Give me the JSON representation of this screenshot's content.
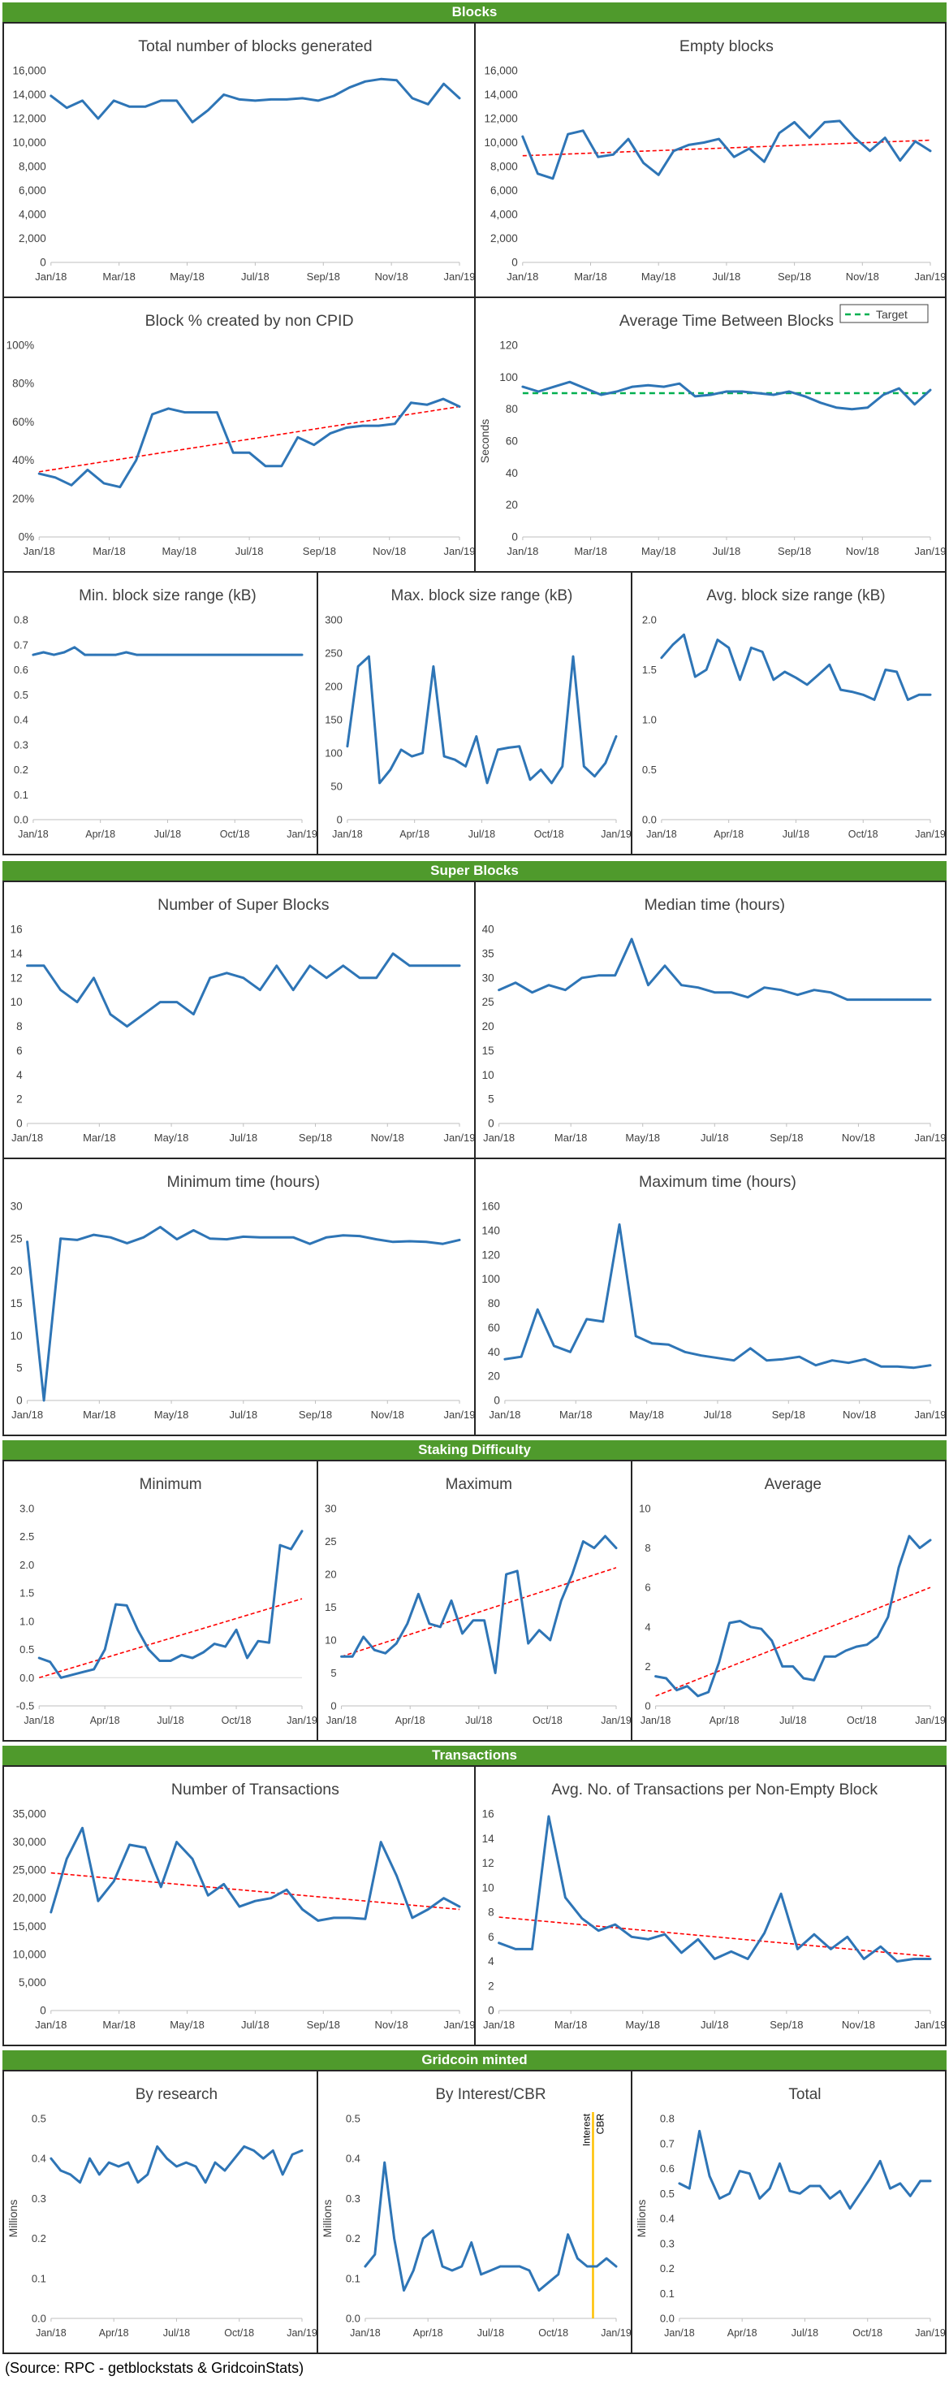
{
  "sections": [
    {
      "title": "Blocks"
    },
    {
      "title": "Super Blocks"
    },
    {
      "title": "Staking Difficulty"
    },
    {
      "title": "Transactions"
    },
    {
      "title": "Gridcoin minted"
    }
  ],
  "source": "(Source: RPC - getblockstats & GridcoinStats)",
  "colors": {
    "line": "#2e75b6",
    "trend": "#ff0000",
    "target": "#00b050",
    "cbr_marker": "#ffc000",
    "banner": "#4f9a2c"
  },
  "chart_data": [
    {
      "id": "total-blocks",
      "type": "line",
      "title": "Total number of blocks generated",
      "ylim": [
        0,
        16000
      ],
      "yticks": [
        0,
        2000,
        4000,
        6000,
        8000,
        10000,
        12000,
        14000,
        16000
      ],
      "yformat": "thousands",
      "xticks": [
        "Jan/18",
        "Mar/18",
        "May/18",
        "Jul/18",
        "Sep/18",
        "Nov/18",
        "Jan/19"
      ],
      "trend": null,
      "values": [
        13900,
        12900,
        13500,
        12000,
        13500,
        13000,
        13000,
        13500,
        13500,
        11700,
        12700,
        14000,
        13600,
        13500,
        13600,
        13600,
        13700,
        13500,
        13900,
        14600,
        15100,
        15300,
        15200,
        13700,
        13200,
        14900,
        13700
      ]
    },
    {
      "id": "empty-blocks",
      "type": "line",
      "title": "Empty blocks",
      "ylim": [
        0,
        16000
      ],
      "yticks": [
        0,
        2000,
        4000,
        6000,
        8000,
        10000,
        12000,
        14000,
        16000
      ],
      "yformat": "thousands",
      "xticks": [
        "Jan/18",
        "Mar/18",
        "May/18",
        "Jul/18",
        "Sep/18",
        "Nov/18",
        "Jan/19"
      ],
      "trend": [
        8900,
        10200
      ],
      "values": [
        10500,
        7400,
        7000,
        10700,
        11000,
        8800,
        9000,
        10300,
        8300,
        7300,
        9300,
        9800,
        10000,
        10300,
        8800,
        9500,
        8400,
        10800,
        11700,
        10400,
        11700,
        11800,
        10400,
        9300,
        10400,
        8500,
        10100,
        9300
      ]
    },
    {
      "id": "non-cpid",
      "type": "line",
      "title": "Block % created by non CPID",
      "ylim": [
        0,
        100
      ],
      "yticks": [
        0,
        20,
        40,
        60,
        80,
        100
      ],
      "yformat": "percent",
      "xticks": [
        "Jan/18",
        "Mar/18",
        "May/18",
        "Jul/18",
        "Sep/18",
        "Nov/18",
        "Jan/19"
      ],
      "trend": [
        34,
        68
      ],
      "values": [
        33,
        31,
        27,
        35,
        28,
        26,
        40,
        64,
        67,
        65,
        65,
        65,
        44,
        44,
        37,
        37,
        52,
        48,
        54,
        57,
        58,
        58,
        59,
        70,
        69,
        72,
        68
      ]
    },
    {
      "id": "avg-time",
      "type": "line",
      "title": "Average Time Between Blocks",
      "ylabel": "Seconds",
      "ylim": [
        0,
        120
      ],
      "yticks": [
        0,
        20,
        40,
        60,
        80,
        100,
        120
      ],
      "yformat": "plain",
      "xticks": [
        "Jan/18",
        "Mar/18",
        "May/18",
        "Jul/18",
        "Sep/18",
        "Nov/18",
        "Jan/19"
      ],
      "trend": null,
      "target": 90,
      "legend": "Target",
      "legend_position": "top-right",
      "values": [
        94,
        91,
        94,
        97,
        93,
        89,
        91,
        94,
        95,
        94,
        96,
        88,
        89,
        91,
        91,
        90,
        89,
        91,
        88,
        84,
        81,
        80,
        81,
        89,
        93,
        83,
        92
      ]
    },
    {
      "id": "min-block-size",
      "type": "line",
      "title": "Min. block size range (kB)",
      "ylim": [
        0,
        0.8
      ],
      "yticks": [
        0,
        0.1,
        0.2,
        0.3,
        0.4,
        0.5,
        0.6,
        0.7,
        0.8
      ],
      "yformat": "dec1",
      "xticks": [
        "Jan/18",
        "Apr/18",
        "Jul/18",
        "Oct/18",
        "Jan/19"
      ],
      "trend": null,
      "values": [
        0.66,
        0.67,
        0.66,
        0.67,
        0.69,
        0.66,
        0.66,
        0.66,
        0.66,
        0.67,
        0.66,
        0.66,
        0.66,
        0.66,
        0.66,
        0.66,
        0.66,
        0.66,
        0.66,
        0.66,
        0.66,
        0.66,
        0.66,
        0.66,
        0.66,
        0.66,
        0.66
      ]
    },
    {
      "id": "max-block-size",
      "type": "line",
      "title": "Max. block size range (kB)",
      "ylim": [
        0,
        300
      ],
      "yticks": [
        0,
        50,
        100,
        150,
        200,
        250,
        300
      ],
      "yformat": "plain",
      "xticks": [
        "Jan/18",
        "Apr/18",
        "Jul/18",
        "Oct/18",
        "Jan/19"
      ],
      "trend": null,
      "values": [
        110,
        230,
        245,
        55,
        75,
        105,
        95,
        100,
        230,
        95,
        90,
        80,
        125,
        55,
        105,
        108,
        110,
        60,
        75,
        55,
        80,
        245,
        80,
        65,
        85,
        125
      ]
    },
    {
      "id": "avg-block-size",
      "type": "line",
      "title": "Avg. block size range (kB)",
      "ylim": [
        0,
        2.0
      ],
      "yticks": [
        0,
        0.5,
        1.0,
        1.5,
        2.0
      ],
      "yformat": "dec1",
      "xticks": [
        "Jan/18",
        "Apr/18",
        "Jul/18",
        "Oct/18",
        "Jan/19"
      ],
      "trend": null,
      "values": [
        1.62,
        1.75,
        1.85,
        1.43,
        1.5,
        1.8,
        1.72,
        1.4,
        1.72,
        1.68,
        1.4,
        1.48,
        1.42,
        1.35,
        1.45,
        1.55,
        1.3,
        1.28,
        1.25,
        1.2,
        1.5,
        1.48,
        1.2,
        1.25,
        1.25
      ]
    },
    {
      "id": "num-super-blocks",
      "type": "line",
      "title": "Number of Super Blocks",
      "ylim": [
        0,
        16
      ],
      "yticks": [
        0,
        2,
        4,
        6,
        8,
        10,
        12,
        14,
        16
      ],
      "yformat": "plain",
      "xticks": [
        "Jan/18",
        "Mar/18",
        "May/18",
        "Jul/18",
        "Sep/18",
        "Nov/18",
        "Jan/19"
      ],
      "trend": null,
      "values": [
        13,
        13,
        11,
        10,
        12,
        9,
        8,
        9,
        10,
        10,
        9,
        12,
        12.4,
        12,
        11,
        13,
        11,
        13,
        12,
        13,
        12,
        12,
        14,
        13,
        13,
        13,
        13
      ]
    },
    {
      "id": "median-time",
      "type": "line",
      "title": "Median time (hours)",
      "ylim": [
        0,
        40
      ],
      "yticks": [
        0,
        5,
        10,
        15,
        20,
        25,
        30,
        35,
        40
      ],
      "yformat": "plain",
      "xticks": [
        "Jan/18",
        "Mar/18",
        "May/18",
        "Jul/18",
        "Sep/18",
        "Nov/18",
        "Jan/19"
      ],
      "trend": null,
      "values": [
        27.5,
        29,
        27,
        28.5,
        27.5,
        30,
        30.5,
        30.5,
        38,
        28.5,
        32.5,
        28.5,
        28,
        27,
        27,
        26,
        28,
        27.5,
        26.5,
        27.5,
        27,
        25.5,
        25.5,
        25.5,
        25.5,
        25.5,
        25.5
      ]
    },
    {
      "id": "minimum-time",
      "type": "line",
      "title": "Minimum time (hours)",
      "ylim": [
        0,
        30
      ],
      "yticks": [
        0,
        5,
        10,
        15,
        20,
        25,
        30
      ],
      "yformat": "plain",
      "xticks": [
        "Jan/18",
        "Mar/18",
        "May/18",
        "Jul/18",
        "Sep/18",
        "Nov/18",
        "Jan/19"
      ],
      "trend": null,
      "values": [
        24.5,
        0,
        25,
        24.8,
        25.6,
        25.2,
        24.3,
        25.2,
        26.8,
        24.9,
        26.3,
        25,
        24.9,
        25.3,
        25.2,
        25.2,
        25.2,
        24.2,
        25.2,
        25.5,
        25.4,
        24.9,
        24.5,
        24.6,
        24.5,
        24.2,
        24.8
      ]
    },
    {
      "id": "maximum-time",
      "type": "line",
      "title": "Maximum time (hours)",
      "ylim": [
        0,
        160
      ],
      "yticks": [
        0,
        20,
        40,
        60,
        80,
        100,
        120,
        140,
        160
      ],
      "yformat": "plain",
      "xticks": [
        "Jan/18",
        "Mar/18",
        "May/18",
        "Jul/18",
        "Sep/18",
        "Nov/18",
        "Jan/19"
      ],
      "trend": null,
      "values": [
        34,
        36,
        75,
        45,
        40,
        67,
        65,
        145,
        53,
        47,
        46,
        40,
        37,
        35,
        33,
        43,
        33,
        34,
        36,
        29,
        33,
        31,
        34,
        28,
        28,
        27,
        29
      ]
    },
    {
      "id": "staking-min",
      "type": "line",
      "title": "Minimum",
      "ylim": [
        -0.5,
        3.0
      ],
      "yticks": [
        -0.5,
        0,
        0.5,
        1.0,
        1.5,
        2.0,
        2.5,
        3.0
      ],
      "yformat": "dec1",
      "xticks": [
        "Jan/18",
        "Apr/18",
        "Jul/18",
        "Oct/18",
        "Jan/19"
      ],
      "trend": [
        0.0,
        1.4
      ],
      "values": [
        0.35,
        0.28,
        0.0,
        0.05,
        0.1,
        0.15,
        0.5,
        1.3,
        1.28,
        0.85,
        0.5,
        0.3,
        0.3,
        0.4,
        0.35,
        0.45,
        0.6,
        0.55,
        0.85,
        0.35,
        0.65,
        0.62,
        2.35,
        2.28,
        2.6
      ]
    },
    {
      "id": "staking-max",
      "type": "line",
      "title": "Maximum",
      "ylim": [
        0,
        30
      ],
      "yticks": [
        0,
        5,
        10,
        15,
        20,
        25,
        30
      ],
      "yformat": "plain",
      "xticks": [
        "Jan/18",
        "Apr/18",
        "Jul/18",
        "Oct/18",
        "Jan/19"
      ],
      "trend": [
        7.5,
        21
      ],
      "values": [
        7.5,
        7.5,
        10.5,
        8.5,
        8,
        9.5,
        12.5,
        17,
        12.5,
        12,
        16,
        11,
        13,
        13,
        5,
        20,
        20.5,
        9.5,
        11.5,
        10,
        16,
        20,
        25,
        24,
        25.8,
        24
      ]
    },
    {
      "id": "staking-avg",
      "type": "line",
      "title": "Average",
      "ylim": [
        0,
        10
      ],
      "yticks": [
        0,
        2,
        4,
        6,
        8,
        10
      ],
      "yformat": "plain",
      "xticks": [
        "Jan/18",
        "Apr/18",
        "Jul/18",
        "Oct/18",
        "Jan/19"
      ],
      "trend": [
        0.5,
        6.0
      ],
      "values": [
        1.5,
        1.4,
        0.8,
        1.0,
        0.5,
        0.7,
        2.2,
        4.2,
        4.3,
        4.0,
        3.9,
        3.3,
        2.0,
        2.0,
        1.4,
        1.3,
        2.5,
        2.5,
        2.8,
        3.0,
        3.1,
        3.5,
        4.5,
        7.0,
        8.6,
        8.0,
        8.4
      ]
    },
    {
      "id": "num-transactions",
      "type": "line",
      "title": "Number of Transactions",
      "ylim": [
        0,
        35000
      ],
      "yticks": [
        0,
        5000,
        10000,
        15000,
        20000,
        25000,
        30000,
        35000
      ],
      "yformat": "thousands",
      "xticks": [
        "Jan/18",
        "Mar/18",
        "May/18",
        "Jul/18",
        "Sep/18",
        "Nov/18",
        "Jan/19"
      ],
      "trend": [
        24500,
        18000
      ],
      "values": [
        17500,
        27000,
        32500,
        19500,
        23000,
        29500,
        29000,
        22000,
        30000,
        27000,
        20500,
        22500,
        18500,
        19500,
        20000,
        21500,
        18000,
        16000,
        16500,
        16500,
        16300,
        30000,
        24000,
        16500,
        18000,
        20000,
        18500
      ]
    },
    {
      "id": "avg-transactions",
      "type": "line",
      "title": "Avg. No. of Transactions per Non-Empty Block",
      "ylim": [
        0,
        16
      ],
      "yticks": [
        0,
        2,
        4,
        6,
        8,
        10,
        12,
        14,
        16
      ],
      "yformat": "plain",
      "xticks": [
        "Jan/18",
        "Mar/18",
        "May/18",
        "Jul/18",
        "Sep/18",
        "Nov/18",
        "Jan/19"
      ],
      "trend": [
        7.6,
        4.4
      ],
      "values": [
        5.5,
        5.0,
        5.0,
        15.8,
        9.2,
        7.5,
        6.5,
        7.0,
        6.0,
        5.8,
        6.2,
        4.7,
        5.8,
        4.2,
        4.8,
        4.2,
        6.3,
        9.5,
        5.0,
        6.2,
        5.0,
        6.0,
        4.2,
        5.2,
        4.0,
        4.2,
        4.2
      ]
    },
    {
      "id": "by-research",
      "type": "line",
      "title": "By research",
      "ylabel": "Millions",
      "ylim": [
        0,
        0.5
      ],
      "yticks": [
        0,
        0.1,
        0.2,
        0.3,
        0.4,
        0.5
      ],
      "yformat": "dec1",
      "xticks": [
        "Jan/18",
        "Apr/18",
        "Jul/18",
        "Oct/18",
        "Jan/19"
      ],
      "trend": null,
      "values": [
        0.4,
        0.37,
        0.36,
        0.34,
        0.4,
        0.36,
        0.39,
        0.38,
        0.39,
        0.34,
        0.36,
        0.43,
        0.4,
        0.38,
        0.39,
        0.38,
        0.34,
        0.39,
        0.37,
        0.4,
        0.43,
        0.42,
        0.4,
        0.42,
        0.36,
        0.41,
        0.42
      ]
    },
    {
      "id": "by-interest",
      "type": "line",
      "title": "By Interest/CBR",
      "ylabel": "Millions",
      "ylim": [
        0,
        0.5
      ],
      "yticks": [
        0,
        0.1,
        0.2,
        0.3,
        0.4,
        0.5
      ],
      "yformat": "dec1",
      "xticks": [
        "Jan/18",
        "Apr/18",
        "Jul/18",
        "Oct/18",
        "Jan/19"
      ],
      "trend": null,
      "marker": {
        "index": 23.6,
        "label_left": "Interest",
        "label_right": "CBR"
      },
      "values": [
        0.13,
        0.16,
        0.39,
        0.2,
        0.07,
        0.12,
        0.2,
        0.22,
        0.13,
        0.12,
        0.13,
        0.19,
        0.11,
        0.12,
        0.13,
        0.13,
        0.13,
        0.12,
        0.07,
        0.09,
        0.11,
        0.21,
        0.15,
        0.13,
        0.13,
        0.15,
        0.13
      ]
    },
    {
      "id": "total-minted",
      "type": "line",
      "title": "Total",
      "ylabel": "Millions",
      "ylim": [
        0,
        0.8
      ],
      "yticks": [
        0,
        0.1,
        0.2,
        0.3,
        0.4,
        0.5,
        0.6,
        0.7,
        0.8
      ],
      "yformat": "dec1",
      "xticks": [
        "Jan/18",
        "Apr/18",
        "Jul/18",
        "Oct/18",
        "Jan/19"
      ],
      "trend": null,
      "values": [
        0.54,
        0.52,
        0.75,
        0.57,
        0.48,
        0.5,
        0.59,
        0.58,
        0.48,
        0.52,
        0.62,
        0.51,
        0.5,
        0.53,
        0.53,
        0.48,
        0.51,
        0.44,
        0.5,
        0.56,
        0.63,
        0.52,
        0.54,
        0.49,
        0.55,
        0.55
      ]
    }
  ]
}
